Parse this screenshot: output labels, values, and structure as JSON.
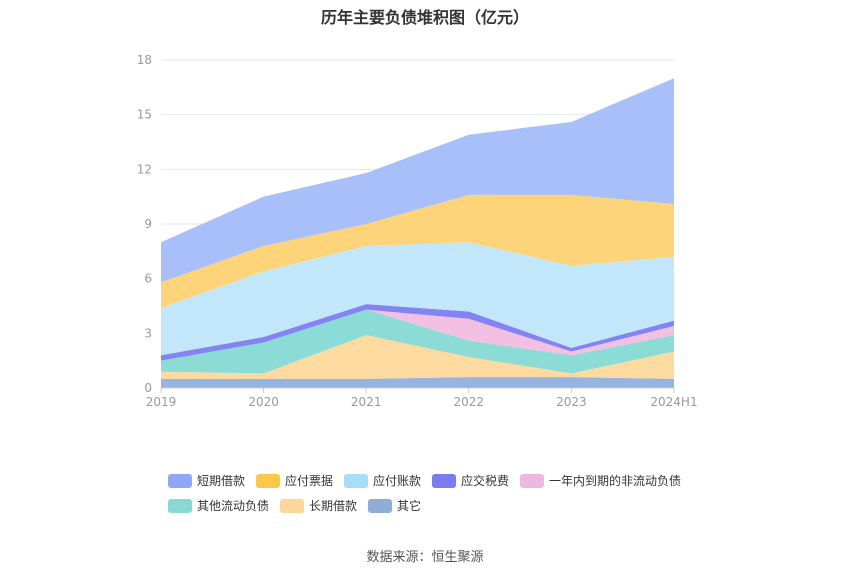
{
  "chart_data": {
    "type": "area",
    "stacked": true,
    "title": "历年主要负债堆积图（亿元）",
    "xlabel": "",
    "ylabel": "",
    "categories": [
      "2019",
      "2020",
      "2021",
      "2022",
      "2023",
      "2024H1"
    ],
    "y_ticks": [
      "0",
      "3",
      "6",
      "9",
      "12",
      "15",
      "18"
    ],
    "ylim": [
      0,
      18
    ],
    "grid": true,
    "legend_position": "bottom",
    "series": [
      {
        "name": "其它",
        "color": "#8fb0de",
        "values": [
          0.5,
          0.5,
          0.5,
          0.6,
          0.6,
          0.5
        ]
      },
      {
        "name": "长期借款",
        "color": "#fdd89a",
        "values": [
          0.4,
          0.3,
          2.4,
          1.1,
          0.2,
          1.5
        ]
      },
      {
        "name": "其他流动负债",
        "color": "#85d9d4",
        "values": [
          0.6,
          1.7,
          1.4,
          0.9,
          1.0,
          0.9
        ]
      },
      {
        "name": "一年内到期的非流动负债",
        "color": "#f0bde0",
        "values": [
          0.0,
          0.0,
          0.0,
          1.2,
          0.2,
          0.5
        ]
      },
      {
        "name": "应交税费",
        "color": "#7c7cf0",
        "values": [
          0.3,
          0.3,
          0.3,
          0.4,
          0.2,
          0.3
        ]
      },
      {
        "name": "应付账款",
        "color": "#bfe6fb",
        "values": [
          2.6,
          3.6,
          3.2,
          3.8,
          4.5,
          3.5
        ]
      },
      {
        "name": "应付票据",
        "color": "#fdd272",
        "values": [
          1.4,
          1.4,
          1.2,
          2.6,
          3.9,
          2.9
        ]
      },
      {
        "name": "短期借款",
        "color": "#a3bcfa",
        "values": [
          2.2,
          2.7,
          2.8,
          3.3,
          4.0,
          6.9
        ]
      }
    ]
  },
  "legend": [
    {
      "name": "短期借款",
      "color": "#8ea7f6"
    },
    {
      "name": "应付票据",
      "color": "#fbc94a"
    },
    {
      "name": "应付账款",
      "color": "#a8ddf8"
    },
    {
      "name": "应交税费",
      "color": "#7c7cf0"
    },
    {
      "name": "一年内到期的非流动负债",
      "color": "#ecb8dd"
    },
    {
      "name": "其他流动负债",
      "color": "#88d8d3"
    },
    {
      "name": "长期借款",
      "color": "#fdd79a"
    },
    {
      "name": "其它",
      "color": "#90acd8"
    }
  ],
  "source": "数据来源：恒生聚源"
}
